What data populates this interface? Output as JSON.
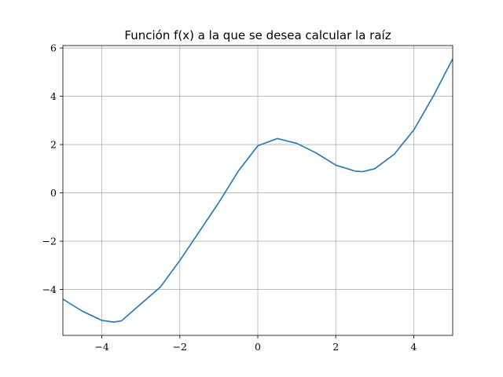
{
  "chart_data": {
    "type": "line",
    "title": "Función f(x) a la que se desea calcular la raíz",
    "xlabel": "",
    "ylabel": "",
    "xlim": [
      -5,
      5
    ],
    "ylim": [
      -5.9,
      6.1
    ],
    "x_ticks": [
      -4,
      -2,
      0,
      2,
      4
    ],
    "y_ticks": [
      -4,
      -2,
      0,
      2,
      4,
      6
    ],
    "x_tick_labels": [
      "−4",
      "−2",
      "0",
      "2",
      "4"
    ],
    "y_tick_labels": [
      "−4",
      "−2",
      "0",
      "2",
      "4",
      "6"
    ],
    "grid": true,
    "series": [
      {
        "color": "#1f77b4",
        "x": [
          -5,
          -4.5,
          -4,
          -3.7,
          -3.5,
          -3,
          -2.5,
          -2,
          -1.5,
          -1,
          -0.5,
          0,
          0.5,
          1,
          1.5,
          2,
          2.5,
          2.7,
          3,
          3.5,
          4,
          4.5,
          5
        ],
        "y": [
          -4.4,
          -4.9,
          -5.28,
          -5.35,
          -5.3,
          -4.6,
          -3.9,
          -2.8,
          -1.6,
          -0.4,
          0.9,
          1.95,
          2.25,
          2.05,
          1.65,
          1.15,
          0.9,
          0.88,
          1.0,
          1.6,
          2.6,
          4.0,
          5.55
        ]
      }
    ]
  }
}
